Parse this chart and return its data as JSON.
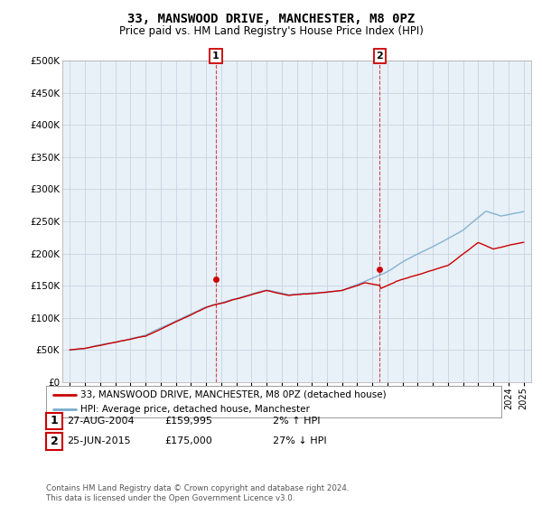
{
  "title": "33, MANSWOOD DRIVE, MANCHESTER, M8 0PZ",
  "subtitle": "Price paid vs. HM Land Registry's House Price Index (HPI)",
  "ylim": [
    0,
    500000
  ],
  "yticks": [
    0,
    50000,
    100000,
    150000,
    200000,
    250000,
    300000,
    350000,
    400000,
    450000,
    500000
  ],
  "legend_line1": "33, MANSWOOD DRIVE, MANCHESTER, M8 0PZ (detached house)",
  "legend_line2": "HPI: Average price, detached house, Manchester",
  "legend_color1": "#cc0000",
  "legend_color2": "#7aaccc",
  "marker1_label": "1",
  "marker1_date": "27-AUG-2004",
  "marker1_price": "£159,995",
  "marker1_hpi": "2% ↑ HPI",
  "marker1_x": 2004.65,
  "marker1_y": 159995,
  "marker2_label": "2",
  "marker2_date": "25-JUN-2015",
  "marker2_price": "£175,000",
  "marker2_hpi": "27% ↓ HPI",
  "marker2_x": 2015.48,
  "marker2_y": 175000,
  "footer": "Contains HM Land Registry data © Crown copyright and database right 2024.\nThis data is licensed under the Open Government Licence v3.0.",
  "background_color": "#ffffff",
  "plot_bg_color": "#e8f0f8",
  "grid_color": "#c8d4e0",
  "hpi_line_color": "#7aaccc",
  "price_line_color": "#cc0000",
  "xmin": 1994.5,
  "xmax": 2025.5
}
